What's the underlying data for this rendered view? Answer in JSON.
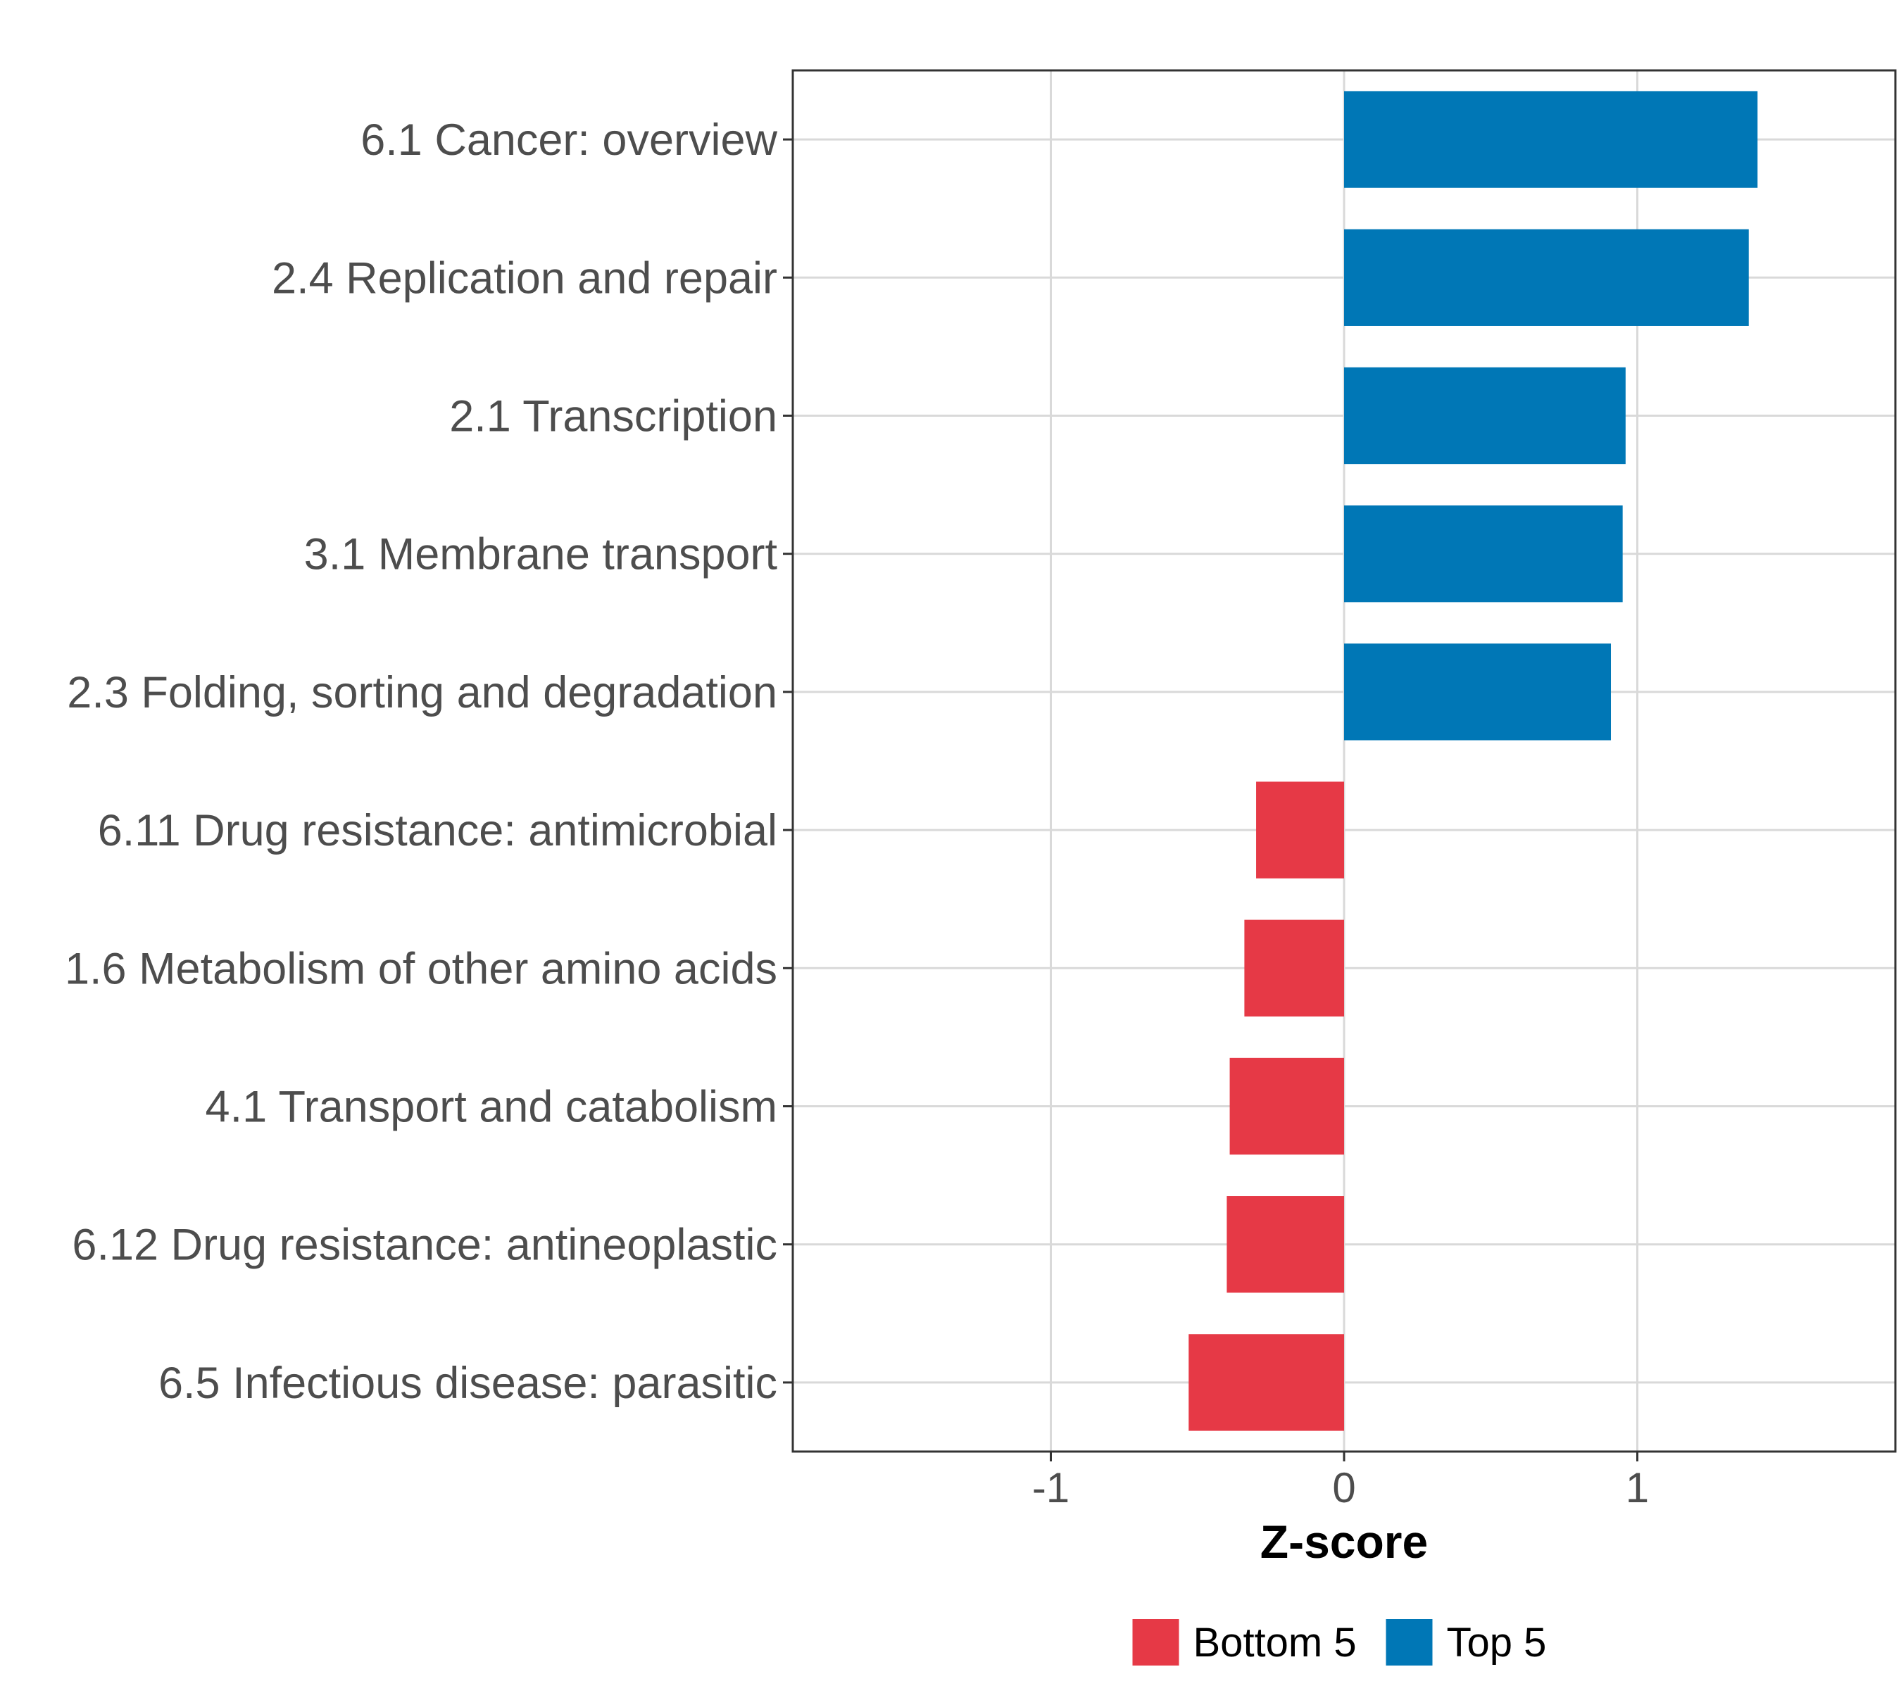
{
  "chart_data": {
    "type": "bar",
    "orientation": "horizontal",
    "title": "",
    "xlabel": "Z-score",
    "ylabel": "",
    "xlim": [
      -1.88,
      1.88
    ],
    "xticks": [
      -1,
      0,
      1
    ],
    "xtick_labels": [
      "-1",
      "0",
      "1"
    ],
    "grid": true,
    "legend_position": "bottom",
    "categories": [
      "6.1 Cancer: overview",
      "2.4 Replication and repair",
      "2.1 Transcription",
      "3.1 Membrane transport",
      "2.3 Folding, sorting and degradation",
      "6.11 Drug resistance: antimicrobial",
      "1.6 Metabolism of other amino acids",
      "4.1 Transport and catabolism",
      "6.12 Drug resistance: antineoplastic",
      "6.5 Infectious disease: parasitic"
    ],
    "values": [
      1.41,
      1.38,
      0.96,
      0.95,
      0.91,
      -0.3,
      -0.34,
      -0.39,
      -0.4,
      -0.53
    ],
    "groups": [
      "Top 5",
      "Top 5",
      "Top 5",
      "Top 5",
      "Top 5",
      "Bottom 5",
      "Bottom 5",
      "Bottom 5",
      "Bottom 5",
      "Bottom 5"
    ],
    "legend": [
      {
        "label": "Bottom 5",
        "color": "#e63946"
      },
      {
        "label": "Top 5",
        "color": "#0077b6"
      }
    ]
  }
}
